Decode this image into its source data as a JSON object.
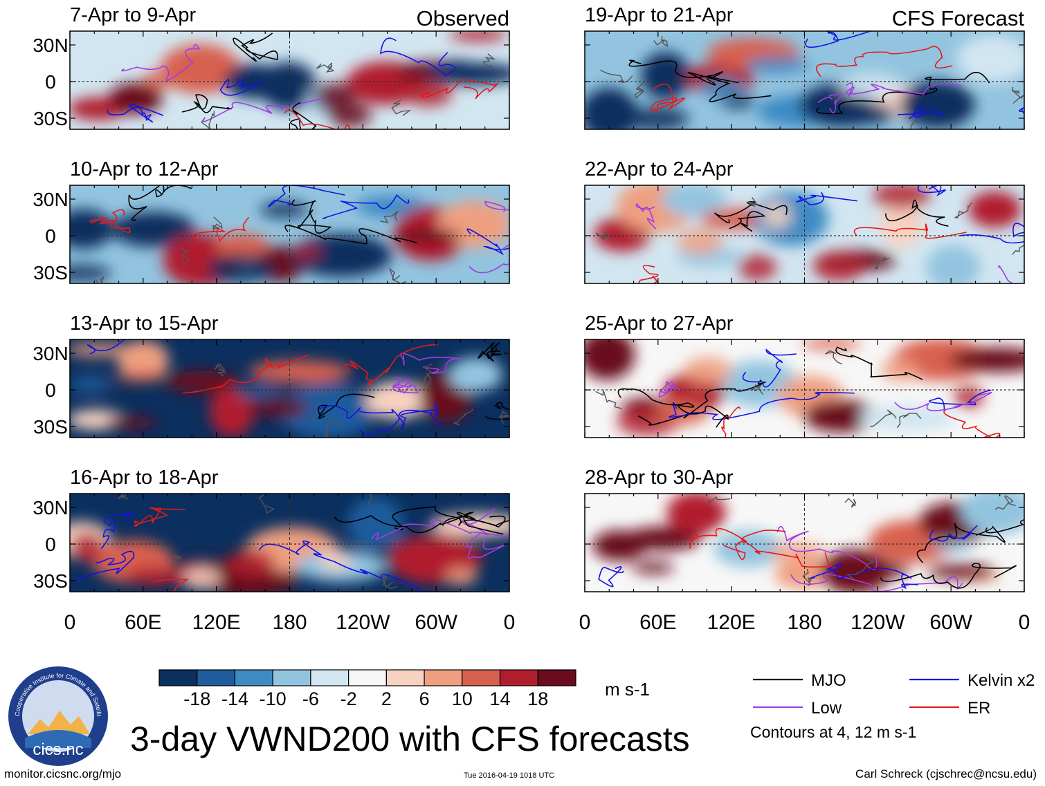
{
  "chart_data": {
    "type": "heatmap",
    "title": "3-day VWND200 with CFS forecasts",
    "variable": "VWND200",
    "units": "m s-1",
    "contour_note": "Contours at 4, 12 m s-1",
    "column_headers": [
      "Observed",
      "CFS Forecast"
    ],
    "panels": [
      {
        "column": 0,
        "row": 0,
        "label": "7-Apr to 9-Apr",
        "source": "Observed"
      },
      {
        "column": 0,
        "row": 1,
        "label": "10-Apr to 12-Apr",
        "source": "Observed"
      },
      {
        "column": 0,
        "row": 2,
        "label": "13-Apr to 15-Apr",
        "source": "Observed"
      },
      {
        "column": 0,
        "row": 3,
        "label": "16-Apr to 18-Apr",
        "source": "Observed"
      },
      {
        "column": 1,
        "row": 0,
        "label": "19-Apr to 21-Apr",
        "source": "CFS Forecast"
      },
      {
        "column": 1,
        "row": 1,
        "label": "22-Apr to 24-Apr",
        "source": "CFS Forecast"
      },
      {
        "column": 1,
        "row": 2,
        "label": "25-Apr to 27-Apr",
        "source": "CFS Forecast"
      },
      {
        "column": 1,
        "row": 3,
        "label": "28-Apr to 30-Apr",
        "source": "CFS Forecast"
      }
    ],
    "x_ticks": [
      "0",
      "60E",
      "120E",
      "180",
      "120W",
      "60W",
      "0"
    ],
    "y_ticks": [
      "30N",
      "0",
      "30S"
    ],
    "colorbar": {
      "labels": [
        "-18",
        "-14",
        "-10",
        "-6",
        "-2",
        "2",
        "6",
        "10",
        "14",
        "18"
      ],
      "colors": [
        "#0b2f5e",
        "#1f5c9c",
        "#3e8bc4",
        "#93c4df",
        "#d2e6f1",
        "#f7f7f7",
        "#f8d2c0",
        "#ef9f80",
        "#d8604f",
        "#b01e2d",
        "#6a0c1d"
      ]
    },
    "legend": [
      {
        "label": "MJO",
        "color": "#000000"
      },
      {
        "label": "Kelvin x2",
        "color": "#1313e6"
      },
      {
        "label": "Low",
        "color": "#a23ce0"
      },
      {
        "label": "ER",
        "color": "#e41b1b"
      }
    ]
  },
  "footer": {
    "url": "monitor.cicsnc.org/mjo",
    "timestamp": "Tue 2016-04-19 1018 UTC",
    "author": "Carl Schreck (cjschrec@ncsu.edu)"
  },
  "logo": {
    "name": "cics.nc",
    "ring_text": "Cooperative Institute for Climate and Satellites"
  }
}
